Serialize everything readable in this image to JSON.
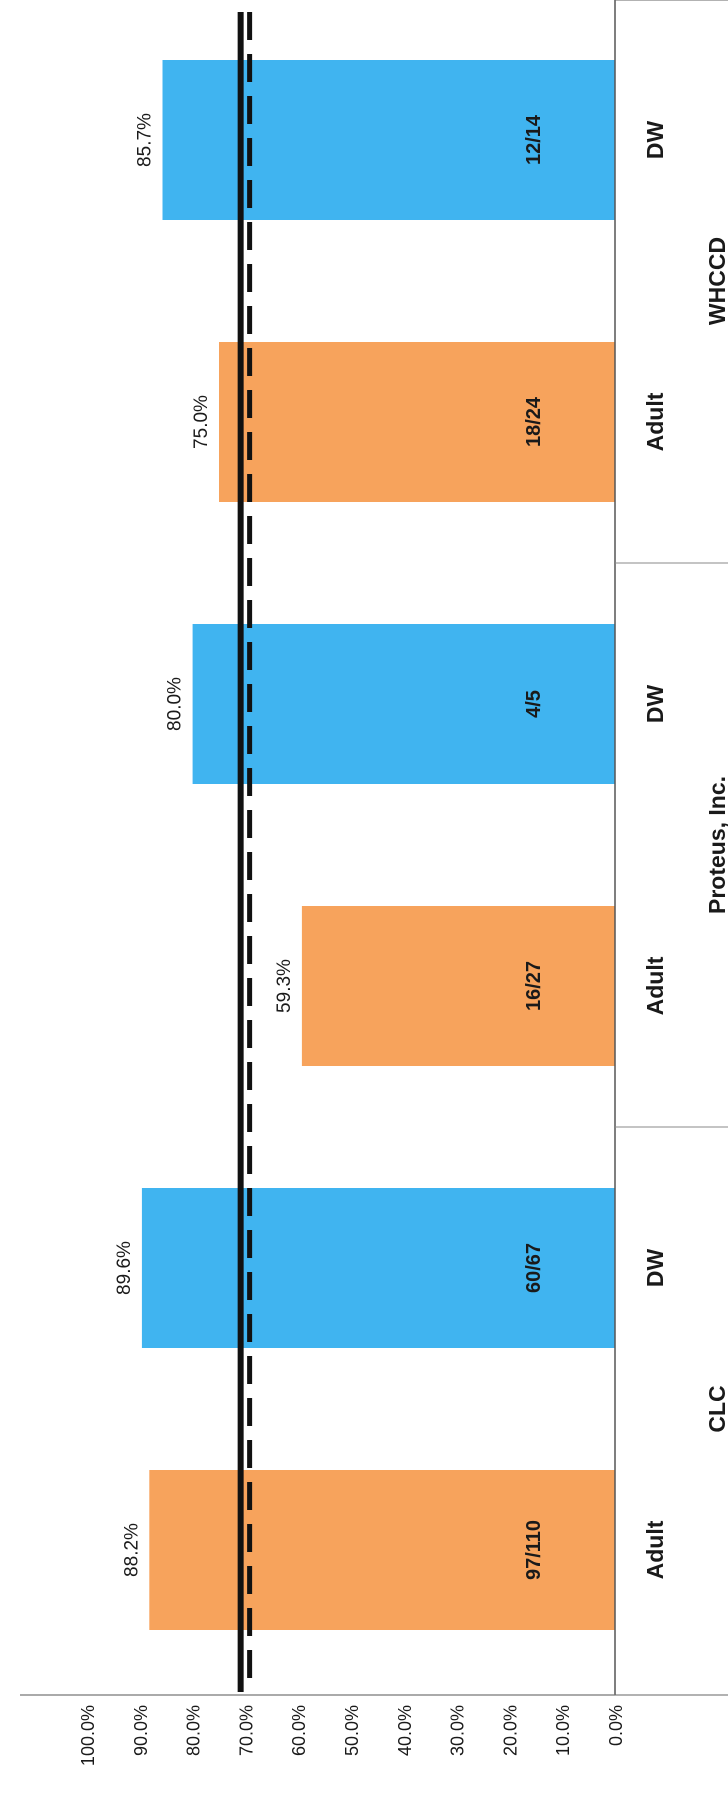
{
  "chart_data": {
    "type": "bar",
    "orientation": "rotated-90-clockwise",
    "ylim": [
      0,
      100
    ],
    "y_ticks": [
      "0.0%",
      "10.0%",
      "20.0%",
      "30.0%",
      "40.0%",
      "50.0%",
      "60.0%",
      "70.0%",
      "80.0%",
      "90.0%",
      "100.0%"
    ],
    "groups": [
      "CLC",
      "Proteus, Inc.",
      "WHCCD"
    ],
    "bars": [
      {
        "group": "CLC",
        "category": "Adult",
        "value": 88.2,
        "label": "88.2%",
        "count": "97/110",
        "color": "#f7a35c"
      },
      {
        "group": "CLC",
        "category": "DW",
        "value": 89.6,
        "label": "89.6%",
        "count": "60/67",
        "color": "#40b4f0"
      },
      {
        "group": "Proteus, Inc.",
        "category": "Adult",
        "value": 59.3,
        "label": "59.3%",
        "count": "16/27",
        "color": "#f7a35c"
      },
      {
        "group": "Proteus, Inc.",
        "category": "DW",
        "value": 80.0,
        "label": "80.0%",
        "count": "4/5",
        "color": "#40b4f0"
      },
      {
        "group": "WHCCD",
        "category": "Adult",
        "value": 75.0,
        "label": "75.0%",
        "count": "18/24",
        "color": "#f7a35c"
      },
      {
        "group": "WHCCD",
        "category": "DW",
        "value": 85.7,
        "label": "85.7%",
        "count": "12/14",
        "color": "#40b4f0"
      }
    ],
    "reference_lines": [
      {
        "style": "solid",
        "value": 70.9
      },
      {
        "style": "dashed",
        "value": 69.2
      }
    ],
    "grid": false,
    "legend": "none"
  }
}
